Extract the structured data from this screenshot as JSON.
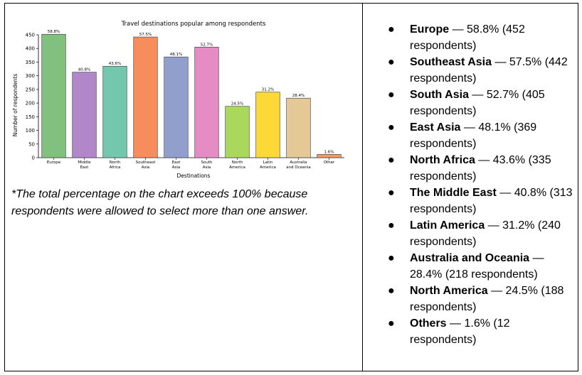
{
  "chart_data": {
    "type": "bar",
    "title": "Travel destinations popular among respondents",
    "xlabel": "Destinations",
    "ylabel": "Number of respondents",
    "ylim": [
      0,
      450
    ],
    "yticks": [
      "0",
      "50",
      "100",
      "150",
      "200",
      "250",
      "300",
      "350",
      "400",
      "450"
    ],
    "grid": false,
    "categories": [
      [
        "Europe"
      ],
      [
        "Middle",
        "East"
      ],
      [
        "North",
        "Africa"
      ],
      [
        "Southeast",
        "Asia"
      ],
      [
        "East",
        "Asia"
      ],
      [
        "South",
        "Asia"
      ],
      [
        "North",
        "America"
      ],
      [
        "Latin",
        "America"
      ],
      [
        "Australia",
        "and Oceania"
      ],
      [
        "Other"
      ]
    ],
    "values": [
      452,
      313,
      335,
      442,
      369,
      405,
      188,
      240,
      218,
      12
    ],
    "data_labels": [
      "58.8%",
      "40.8%",
      "43.6%",
      "57.5%",
      "48.1%",
      "52.7%",
      "24.5%",
      "31.2%",
      "28.4%",
      "1.6%"
    ],
    "colors": [
      "#82c07f",
      "#b187c9",
      "#73c7ad",
      "#f78d5c",
      "#909fcc",
      "#e58cc4",
      "#a9d85c",
      "#fcd937",
      "#e4c895",
      "#f49a66"
    ]
  },
  "note": "*The total percentage on the chart exceeds 100% because respondents were allowed to select more than one answer.",
  "list": [
    {
      "name": "Europe",
      "detail": " — 58.8% (452 respondents)"
    },
    {
      "name": "Southeast Asia",
      "detail": " — 57.5% (442 respondents)"
    },
    {
      "name": "South Asia",
      "detail": " — 52.7% (405 respondents)"
    },
    {
      "name": "East Asia",
      "detail": " — 48.1% (369 respondents)"
    },
    {
      "name": "North Africa",
      "detail": " — 43.6% (335 respondents)"
    },
    {
      "name": "The Middle East",
      "detail": " — 40.8% (313 respondents)"
    },
    {
      "name": "Latin America",
      "detail": " — 31.2% (240 respondents)"
    },
    {
      "name": "Australia and Oceania",
      "detail": " — 28.4% (218 respondents)"
    },
    {
      "name": "North America",
      "detail": " — 24.5% (188 respondents)"
    },
    {
      "name": "Others",
      "detail": " — 1.6% (12 respondents)"
    }
  ]
}
